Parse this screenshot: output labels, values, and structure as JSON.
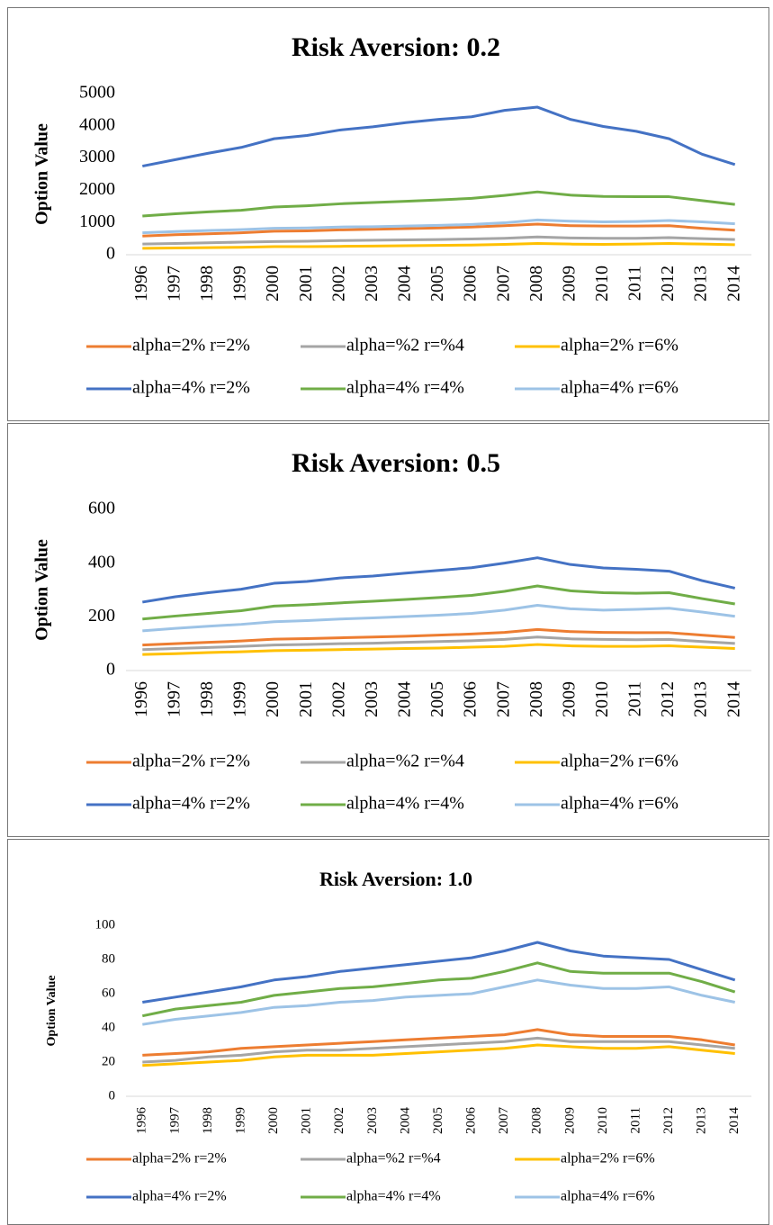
{
  "chart_data": [
    {
      "type": "line",
      "title": "Risk Aversion: 0.2",
      "y_label": "Option Value",
      "categories": [
        "1996",
        "1997",
        "1998",
        "1999",
        "2000",
        "2001",
        "2002",
        "2003",
        "2004",
        "2005",
        "2006",
        "2007",
        "2008",
        "2009",
        "2010",
        "2011",
        "2012",
        "2013",
        "2014"
      ],
      "ylim": [
        0,
        5000
      ],
      "yticks": [
        0,
        1000,
        2000,
        3000,
        4000,
        5000
      ],
      "grid": false,
      "series": [
        {
          "name": "alpha=2% r=2%",
          "color": "#ed7d31",
          "values": [
            580,
            620,
            650,
            680,
            730,
            740,
            770,
            790,
            810,
            830,
            860,
            900,
            950,
            900,
            890,
            890,
            900,
            820,
            760
          ]
        },
        {
          "name": "alpha=%2 r=%4",
          "color": "#a5a5a5",
          "values": [
            330,
            350,
            370,
            390,
            410,
            420,
            440,
            450,
            460,
            470,
            490,
            510,
            550,
            520,
            510,
            510,
            530,
            500,
            470
          ]
        },
        {
          "name": "alpha=2% r=6%",
          "color": "#ffc000",
          "values": [
            200,
            210,
            220,
            230,
            250,
            250,
            260,
            270,
            280,
            290,
            300,
            320,
            350,
            330,
            320,
            330,
            350,
            330,
            310
          ]
        },
        {
          "name": "alpha=4% r=2%",
          "color": "#4472c4",
          "values": [
            2750,
            2950,
            3150,
            3330,
            3600,
            3700,
            3870,
            3970,
            4100,
            4200,
            4280,
            4480,
            4580,
            4200,
            3980,
            3830,
            3600,
            3120,
            2800
          ]
        },
        {
          "name": "alpha=4% r=4%",
          "color": "#70ad47",
          "values": [
            1200,
            1270,
            1330,
            1380,
            1480,
            1520,
            1580,
            1620,
            1660,
            1700,
            1750,
            1840,
            1950,
            1850,
            1810,
            1800,
            1800,
            1680,
            1560
          ]
        },
        {
          "name": "alpha=4% r=6%",
          "color": "#9dc3e6",
          "values": [
            680,
            720,
            750,
            780,
            820,
            830,
            860,
            870,
            890,
            910,
            940,
            990,
            1080,
            1040,
            1020,
            1030,
            1060,
            1020,
            960
          ]
        }
      ]
    },
    {
      "type": "line",
      "title": "Risk Aversion: 0.5",
      "y_label": "Option Value",
      "categories": [
        "1996",
        "1997",
        "1998",
        "1999",
        "2000",
        "2001",
        "2002",
        "2003",
        "2004",
        "2005",
        "2006",
        "2007",
        "2008",
        "2009",
        "2010",
        "2011",
        "2012",
        "2013",
        "2014"
      ],
      "ylim": [
        0,
        600
      ],
      "yticks": [
        0,
        200,
        400,
        600
      ],
      "grid": false,
      "series": [
        {
          "name": "alpha=2% r=2%",
          "color": "#ed7d31",
          "values": [
            95,
            100,
            105,
            110,
            117,
            119,
            122,
            125,
            128,
            132,
            136,
            142,
            153,
            145,
            142,
            141,
            141,
            132,
            123
          ]
        },
        {
          "name": "alpha=%2 r=%4",
          "color": "#a5a5a5",
          "values": [
            78,
            82,
            86,
            90,
            95,
            97,
            100,
            102,
            105,
            108,
            111,
            116,
            125,
            118,
            116,
            115,
            116,
            108,
            101
          ]
        },
        {
          "name": "alpha=2% r=6%",
          "color": "#ffc000",
          "values": [
            60,
            63,
            67,
            70,
            74,
            76,
            78,
            80,
            82,
            84,
            87,
            90,
            97,
            92,
            90,
            90,
            92,
            87,
            82
          ]
        },
        {
          "name": "alpha=4% r=2%",
          "color": "#4472c4",
          "values": [
            255,
            275,
            290,
            303,
            325,
            332,
            345,
            352,
            363,
            373,
            383,
            400,
            420,
            395,
            382,
            377,
            370,
            335,
            307
          ]
        },
        {
          "name": "alpha=4% r=4%",
          "color": "#70ad47",
          "values": [
            192,
            203,
            213,
            223,
            240,
            245,
            252,
            258,
            265,
            272,
            280,
            295,
            315,
            297,
            290,
            288,
            290,
            268,
            248
          ]
        },
        {
          "name": "alpha=4% r=6%",
          "color": "#9dc3e6",
          "values": [
            148,
            157,
            165,
            172,
            182,
            186,
            192,
            196,
            201,
            206,
            213,
            225,
            243,
            230,
            225,
            228,
            232,
            218,
            202
          ]
        }
      ]
    },
    {
      "type": "line",
      "title": "Risk Aversion: 1.0",
      "y_label": "Option  Value",
      "categories": [
        "1996",
        "1997",
        "1998",
        "1999",
        "2000",
        "2001",
        "2002",
        "2003",
        "2004",
        "2005",
        "2006",
        "2007",
        "2008",
        "2009",
        "2010",
        "2011",
        "2012",
        "2013",
        "2014"
      ],
      "ylim": [
        0,
        100
      ],
      "yticks": [
        0,
        20,
        40,
        60,
        80,
        100
      ],
      "grid": false,
      "series": [
        {
          "name": "alpha=2% r=2%",
          "color": "#ed7d31",
          "values": [
            24,
            25,
            26,
            28,
            29,
            30,
            31,
            32,
            33,
            34,
            35,
            36,
            39,
            36,
            35,
            35,
            35,
            33,
            30
          ]
        },
        {
          "name": "alpha=%2 r=%4",
          "color": "#a5a5a5",
          "values": [
            20,
            21,
            23,
            24,
            26,
            27,
            27,
            28,
            29,
            30,
            31,
            32,
            34,
            32,
            32,
            32,
            32,
            30,
            28
          ]
        },
        {
          "name": "alpha=2% r=6%",
          "color": "#ffc000",
          "values": [
            18,
            19,
            20,
            21,
            23,
            24,
            24,
            24,
            25,
            26,
            27,
            28,
            30,
            29,
            28,
            28,
            29,
            27,
            25
          ]
        },
        {
          "name": "alpha=4% r=2%",
          "color": "#4472c4",
          "values": [
            55,
            58,
            61,
            64,
            68,
            70,
            73,
            75,
            77,
            79,
            81,
            85,
            90,
            85,
            82,
            81,
            80,
            74,
            68
          ]
        },
        {
          "name": "alpha=4% r=4%",
          "color": "#70ad47",
          "values": [
            47,
            51,
            53,
            55,
            59,
            61,
            63,
            64,
            66,
            68,
            69,
            73,
            78,
            73,
            72,
            72,
            72,
            67,
            61
          ]
        },
        {
          "name": "alpha=4% r=6%",
          "color": "#9dc3e6",
          "values": [
            42,
            45,
            47,
            49,
            52,
            53,
            55,
            56,
            58,
            59,
            60,
            64,
            68,
            65,
            63,
            63,
            64,
            59,
            55
          ]
        }
      ]
    }
  ]
}
